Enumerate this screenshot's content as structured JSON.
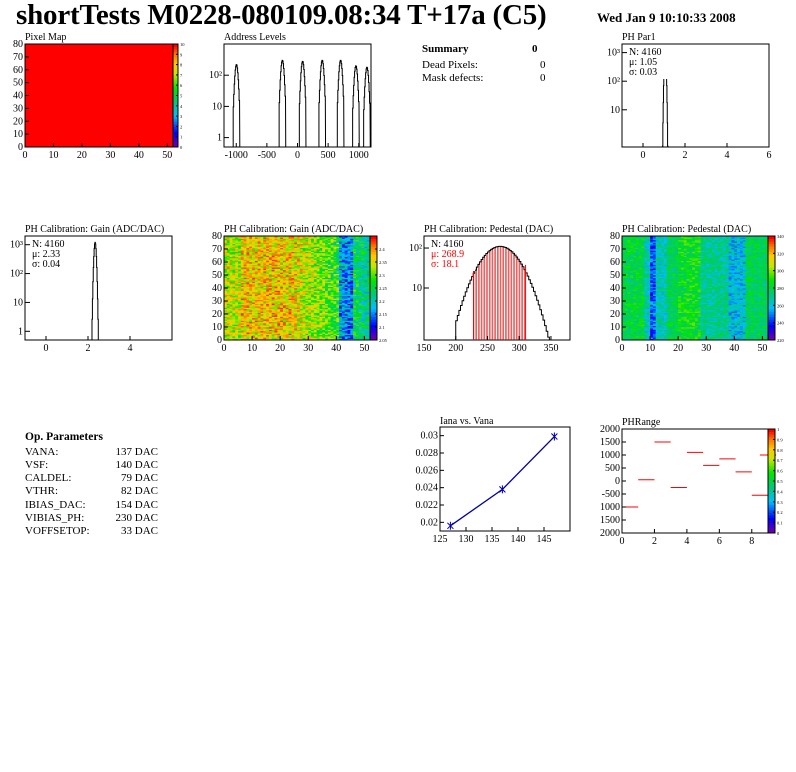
{
  "header": {
    "title": "shortTests M0228-080109.08:34 T+17a (C5)",
    "date": "Wed Jan  9 10:10:33 2008"
  },
  "summary": {
    "title": "Summary",
    "title_value": "0",
    "rows": [
      {
        "label": "Dead Pixels:",
        "value": "0"
      },
      {
        "label": "Mask defects:",
        "value": "0"
      }
    ]
  },
  "op_parameters": {
    "title": "Op. Parameters",
    "rows": [
      {
        "label": "VANA:",
        "value": "137 DAC"
      },
      {
        "label": "VSF:",
        "value": "140 DAC"
      },
      {
        "label": "CALDEL:",
        "value": "79 DAC"
      },
      {
        "label": "VTHR:",
        "value": "82 DAC"
      },
      {
        "label": "IBIAS_DAC:",
        "value": "154 DAC"
      },
      {
        "label": "VIBIAS_PH:",
        "value": "230 DAC"
      },
      {
        "label": "VOFFSETOP:",
        "value": "33 DAC"
      }
    ]
  },
  "colors": {
    "hist_line": "#000000",
    "red": "#ff0000",
    "blue": "#0000aa",
    "frame": "#000000"
  },
  "chart_data": [
    {
      "id": "pixel-map",
      "type": "heatmap",
      "title": "Pixel Map",
      "xlim": [
        0,
        52
      ],
      "ylim": [
        0,
        80
      ],
      "x_ticks": [
        "0",
        "10",
        "20",
        "30",
        "40",
        "50"
      ],
      "y_ticks": [
        "0",
        "10",
        "20",
        "30",
        "40",
        "50",
        "60",
        "70",
        "80"
      ],
      "uniform_color": "#ff0000",
      "z_ticks": [
        "0",
        "1",
        "2",
        "3",
        "4",
        "5",
        "6",
        "7",
        "8",
        "9",
        "10"
      ],
      "zlim": [
        0,
        10
      ]
    },
    {
      "id": "address-levels",
      "type": "histogram",
      "title": "Address Levels",
      "log_y": true,
      "xlim": [
        -1200,
        1200
      ],
      "ylim": [
        0.5,
        1000
      ],
      "x_ticks": [
        "-1000",
        "-500",
        "0",
        "500",
        "1000"
      ],
      "y_ticks": [
        {
          "label": "1",
          "value": 1
        },
        {
          "label": "10",
          "value": 10
        },
        {
          "label": "10²",
          "value": 100
        }
      ],
      "peaks": [
        {
          "x": -1000,
          "height": 220
        },
        {
          "x": -250,
          "height": 300
        },
        {
          "x": 80,
          "height": 280
        },
        {
          "x": 400,
          "height": 300
        },
        {
          "x": 700,
          "height": 300
        },
        {
          "x": 950,
          "height": 200
        },
        {
          "x": 1130,
          "height": 180
        }
      ]
    },
    {
      "id": "ph-par1",
      "type": "histogram",
      "title": "PH Par1",
      "log_y": true,
      "xlim": [
        -1,
        6
      ],
      "ylim": [
        0.5,
        2000
      ],
      "x_ticks": [
        "0",
        "2",
        "4",
        "6"
      ],
      "y_ticks": [
        {
          "label": "10",
          "value": 10
        },
        {
          "label": "10²",
          "value": 100
        },
        {
          "label": "10³",
          "value": 1000
        }
      ],
      "stats": [
        "N: 4160",
        "μ: 1.05",
        "σ: 0.03"
      ],
      "peak": {
        "mean": 1.05,
        "sigma": 0.03,
        "height": 1600
      }
    },
    {
      "id": "ph-gain-hist",
      "type": "histogram",
      "title": "PH Calibration: Gain (ADC/DAC)",
      "log_y": true,
      "xlim": [
        -1,
        6
      ],
      "ylim": [
        0.5,
        2000
      ],
      "x_ticks": [
        "0",
        "2",
        "4"
      ],
      "y_ticks": [
        {
          "label": "1",
          "value": 1
        },
        {
          "label": "10",
          "value": 10
        },
        {
          "label": "10²",
          "value": 100
        },
        {
          "label": "10³",
          "value": 1000
        }
      ],
      "stats": [
        "N: 4160",
        "μ: 2.33",
        "σ: 0.04"
      ],
      "peak": {
        "mean": 2.33,
        "sigma": 0.04,
        "height": 1200
      }
    },
    {
      "id": "ph-gain-map",
      "type": "heatmap",
      "title": "PH Calibration: Gain (ADC/DAC)",
      "xlim": [
        0,
        52
      ],
      "ylim": [
        0,
        80
      ],
      "x_ticks": [
        "0",
        "10",
        "20",
        "30",
        "40",
        "50"
      ],
      "y_ticks": [
        "0",
        "10",
        "20",
        "30",
        "40",
        "50",
        "60",
        "70",
        "80"
      ],
      "zlim": [
        2.05,
        2.45
      ],
      "z_ticks": [
        "2.05",
        "2.1",
        "2.15",
        "2.2",
        "2.25",
        "2.3",
        "2.35",
        "2.4"
      ]
    },
    {
      "id": "ph-pedestal-hist",
      "type": "histogram",
      "title": "PH Calibration: Pedestal (DAC)",
      "log_y": true,
      "xlim": [
        150,
        380
      ],
      "ylim": [
        0.5,
        200
      ],
      "x_ticks": [
        "150",
        "200",
        "250",
        "300",
        "350"
      ],
      "y_ticks": [
        {
          "label": "10",
          "value": 10
        },
        {
          "label": "10²",
          "value": 100
        }
      ],
      "stats": [
        "N: 4160"
      ],
      "fit_stats": [
        "μ: 268.9",
        "σ: 18.1"
      ],
      "peak": {
        "mean": 268.9,
        "sigma": 18.1,
        "height": 110
      },
      "fit_range": [
        228,
        310
      ]
    },
    {
      "id": "ph-pedestal-map",
      "type": "heatmap",
      "title": "PH Calibration: Pedestal (DAC)",
      "xlim": [
        0,
        52
      ],
      "ylim": [
        0,
        80
      ],
      "x_ticks": [
        "0",
        "10",
        "20",
        "30",
        "40",
        "50"
      ],
      "y_ticks": [
        "0",
        "10",
        "20",
        "30",
        "40",
        "50",
        "60",
        "70",
        "80"
      ],
      "zlim": [
        220,
        340
      ],
      "z_ticks": [
        "220",
        "240",
        "260",
        "280",
        "300",
        "320",
        "340"
      ]
    },
    {
      "id": "iana-vs-vana",
      "type": "line",
      "title": "Iana vs. Vana",
      "xlim": [
        125,
        150
      ],
      "ylim": [
        0.019,
        0.031
      ],
      "x_ticks": [
        "125",
        "130",
        "135",
        "140",
        "145"
      ],
      "y_ticks": [
        "0.02",
        "0.022",
        "0.024",
        "0.026",
        "0.028",
        "0.03"
      ],
      "x": [
        127,
        137,
        147
      ],
      "y": [
        0.0196,
        0.0238,
        0.0299
      ]
    },
    {
      "id": "ph-range",
      "type": "heatmap",
      "title": "PHRange",
      "xlim": [
        0,
        9
      ],
      "ylim": [
        -2000,
        2000
      ],
      "x_ticks": [
        "0",
        "2",
        "4",
        "6",
        "8"
      ],
      "y_ticks": [
        "2000",
        "1500",
        "1000",
        "500",
        "0",
        "-500",
        "1000",
        "1500",
        "2000"
      ],
      "zlim": [
        0,
        1
      ],
      "z_ticks": [
        "0",
        "0.1",
        "0.2",
        "0.3",
        "0.4",
        "0.5",
        "0.6",
        "0.7",
        "0.8",
        "0.9",
        "1"
      ],
      "segments": [
        {
          "x": 0,
          "y": -1000
        },
        {
          "x": 1,
          "y": 50
        },
        {
          "x": 2,
          "y": 1500
        },
        {
          "x": 3,
          "y": -250
        },
        {
          "x": 4,
          "y": 1100
        },
        {
          "x": 5,
          "y": 600
        },
        {
          "x": 6,
          "y": 850
        },
        {
          "x": 7,
          "y": 350
        },
        {
          "x": 8,
          "y": -550
        },
        {
          "x": 8.5,
          "y": 1000
        }
      ]
    }
  ]
}
